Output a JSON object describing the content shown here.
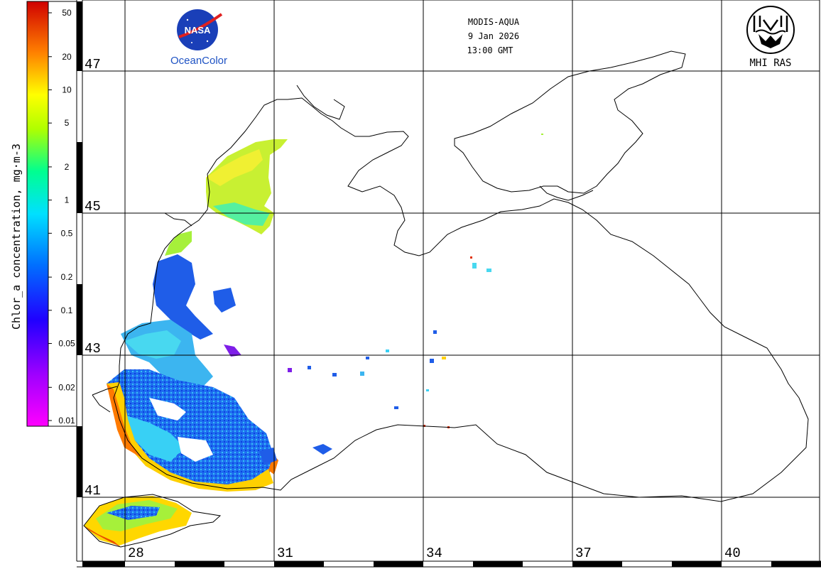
{
  "header": {
    "sensor": "MODIS-AQUA",
    "date": "9 Jan 2026",
    "time": "13:00 GMT"
  },
  "logos": {
    "nasa": "NASA",
    "oceancolor": "OceanColor",
    "mhi": "MHI RAS"
  },
  "colorbar": {
    "title": "Chlor_a concentration, mg·m-3",
    "ticks": [
      "50",
      "20",
      "10",
      "5",
      "2",
      "1",
      "0.5",
      "0.2",
      "0.1",
      "0.05",
      "0.02",
      "0.01"
    ],
    "colors": [
      "#ff00ff",
      "#8000ff",
      "#0000ff",
      "#0080ff",
      "#00ffff",
      "#00ff80",
      "#80ff00",
      "#ffff00",
      "#ff8000",
      "#ff0000",
      "#b00000"
    ],
    "scale": "log"
  },
  "grid": {
    "latitudes": [
      "47",
      "45",
      "43",
      "41"
    ],
    "longitudes": [
      "28",
      "31",
      "34",
      "37",
      "40"
    ]
  }
}
